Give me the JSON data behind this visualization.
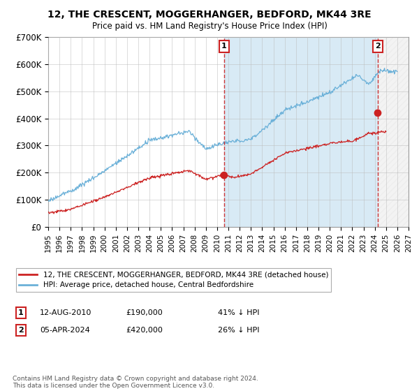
{
  "title": "12, THE CRESCENT, MOGGERHANGER, BEDFORD, MK44 3RE",
  "subtitle": "Price paid vs. HM Land Registry's House Price Index (HPI)",
  "hpi_color": "#6ab0d8",
  "price_color": "#cc2222",
  "dashed_line_color": "#cc2222",
  "background_color": "#ffffff",
  "grid_color": "#bbbbbb",
  "fill_between_color": "#d8eaf5",
  "hatch_color": "#c0c0c0",
  "ylim": [
    0,
    700000
  ],
  "yticks": [
    0,
    100000,
    200000,
    300000,
    400000,
    500000,
    600000,
    700000
  ],
  "ytick_labels": [
    "£0",
    "£100K",
    "£200K",
    "£300K",
    "£400K",
    "£500K",
    "£600K",
    "£700K"
  ],
  "transaction_1": {
    "date_label": "12-AUG-2010",
    "price": 190000,
    "pct": "41%",
    "marker_x": 2010.62,
    "label": "1"
  },
  "transaction_2": {
    "date_label": "05-APR-2024",
    "price": 420000,
    "pct": "26%",
    "marker_x": 2024.27,
    "label": "2"
  },
  "legend_red_label": "12, THE CRESCENT, MOGGERHANGER, BEDFORD, MK44 3RE (detached house)",
  "legend_blue_label": "HPI: Average price, detached house, Central Bedfordshire",
  "footer": "Contains HM Land Registry data © Crown copyright and database right 2024.\nThis data is licensed under the Open Government Licence v3.0.",
  "xmin": 1995,
  "xmax": 2027
}
